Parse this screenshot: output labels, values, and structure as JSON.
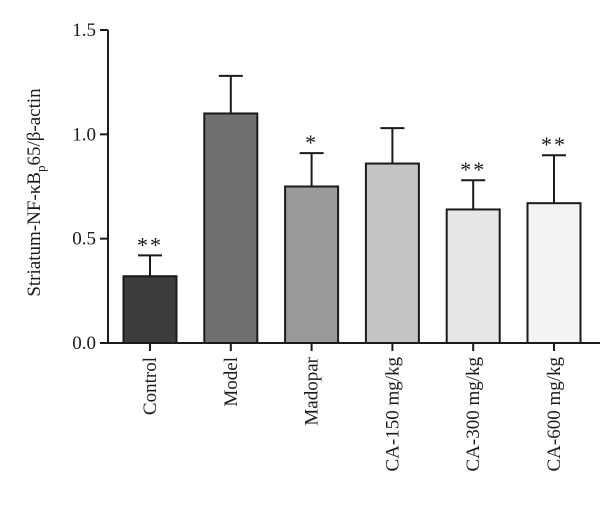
{
  "chart_data": {
    "type": "bar",
    "ylabel": "Striatum-NF-κBp65/β-actin",
    "ylim": [
      0,
      1.5
    ],
    "yticks": [
      "0.0",
      "0.5",
      "1.0",
      "1.5"
    ],
    "categories": [
      "Control",
      "Model",
      "Madopar",
      "CA-150 mg/kg",
      "CA-300 mg/kg",
      "CA-600 mg/kg"
    ],
    "values": [
      0.32,
      1.1,
      0.75,
      0.86,
      0.64,
      0.67
    ],
    "errors": [
      0.1,
      0.18,
      0.16,
      0.17,
      0.14,
      0.23
    ],
    "significance": [
      "**",
      "",
      "*",
      "",
      "**",
      "**"
    ],
    "colors": [
      "#3d3d3d",
      "#707070",
      "#9a9a9a",
      "#c4c4c4",
      "#e6e6e6",
      "#f3f3f3"
    ],
    "grid": false,
    "legend": "none"
  }
}
